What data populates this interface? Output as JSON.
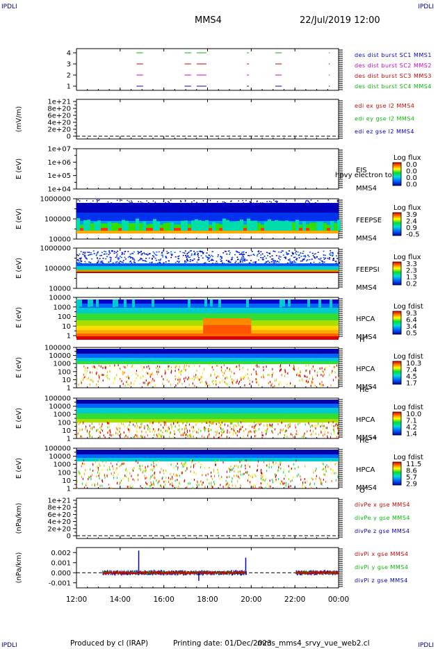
{
  "corners": {
    "tl": "IPDLI",
    "tr": "IPDLI",
    "bl": "IPDLI",
    "br": "IPDLI"
  },
  "header": {
    "spacecraft": "MMS4",
    "date": "22/Jul/2019 12:00"
  },
  "footer": {
    "producer": "Produced by cl (IRAP)",
    "printing": "Printing date: 01/Dec/2023",
    "file": "mms_mms4_srvy_vue_web2.cl"
  },
  "colors": {
    "red": "#cc0000",
    "green": "#00bb00",
    "blue": "#0000cc",
    "magenta": "#cc00cc"
  },
  "time_axis": {
    "ticks": [
      "12:00",
      "14:00",
      "16:00",
      "18:00",
      "20:00",
      "22:00",
      "00:00"
    ],
    "start_hour": 12,
    "end_hour": 24
  },
  "chart_data": [
    {
      "id": "burst",
      "type": "line",
      "yticks": [
        "1",
        "2",
        "3",
        "4"
      ],
      "ylabel": "",
      "legend": [
        {
          "text": "des dist burst SC1 MMS1",
          "color": "#0000cc"
        },
        {
          "text": "des dist burst SC2 MMS2",
          "color": "#cc00cc"
        },
        {
          "text": "des dist burst SC3 MMS3",
          "color": "#cc0000"
        },
        {
          "text": "des dist burst SC4 MMS4",
          "color": "#00bb00"
        }
      ],
      "intervals_hours": [
        [
          14.75,
          15.05
        ],
        [
          16.95,
          17.25
        ],
        [
          17.5,
          17.95
        ],
        [
          19.8,
          19.9
        ],
        [
          21.1,
          21.4
        ],
        [
          23.55,
          23.6
        ]
      ]
    },
    {
      "id": "edi",
      "type": "line",
      "yticks": [
        "0",
        "2e+20",
        "4e+20",
        "6e+20",
        "8e+20",
        "1e+21"
      ],
      "ylabel": "(mV/m)",
      "legend": [
        {
          "text": "edi ex gse l2 MMS4",
          "color": "#cc0000"
        },
        {
          "text": "edi ey gse l2 MMS4",
          "color": "#00bb00"
        },
        {
          "text": "edi ez gse l2 MMS4",
          "color": "#0000cc"
        }
      ]
    },
    {
      "id": "eis",
      "type": "heatmap",
      "yticks": [
        "1e+04",
        "1e+05",
        "1e+06",
        "1e+07"
      ],
      "ylabel": "E (eV)",
      "labels": [
        "EIS",
        "MMS4"
      ],
      "overlay": "hpvy electron to",
      "colorbar": {
        "title": "Log flux",
        "ticks": [
          "0.0",
          "0.0",
          "0.0",
          "0.0"
        ]
      }
    },
    {
      "id": "feepse",
      "type": "heatmap",
      "yticks": [
        "10000",
        "100000",
        "1000000"
      ],
      "ylabel": "E (eV)",
      "labels": [
        "FEEPSE",
        "MMS4"
      ],
      "colorbar": {
        "title": "Log flux",
        "ticks": [
          "3.9",
          "2.4",
          "0.9",
          "-0.5"
        ]
      }
    },
    {
      "id": "feepsi",
      "type": "heatmap",
      "yticks": [
        "10000",
        "100000",
        "1000000"
      ],
      "ylabel": "E (eV)",
      "labels": [
        "FEEPSI",
        "MMS4"
      ],
      "colorbar": {
        "title": "Log flux",
        "ticks": [
          "3.3",
          "2.3",
          "1.3",
          "0.2"
        ]
      }
    },
    {
      "id": "hpca_h",
      "type": "heatmap",
      "yticks": [
        "1",
        "10",
        "100",
        "1000",
        "10000"
      ],
      "ylabel": "E (eV)",
      "labels": [
        "HPCA",
        "MMS4"
      ],
      "species": "H",
      "charge": "+",
      "colorbar": {
        "title": "Log fdist",
        "ticks": [
          "9.3",
          "6.4",
          "3.4",
          "0.5"
        ]
      }
    },
    {
      "id": "hpca_he",
      "type": "heatmap",
      "yticks": [
        "1",
        "10",
        "100",
        "1000",
        "10000",
        "100000"
      ],
      "ylabel": "E (eV)",
      "labels": [
        "HPCA",
        "MMS4"
      ],
      "species": "He",
      "charge": "+",
      "colorbar": {
        "title": "Log fdist",
        "ticks": [
          "10.3",
          "7.4",
          "4.5",
          "1.7"
        ]
      }
    },
    {
      "id": "hpca_hepp",
      "type": "heatmap",
      "yticks": [
        "1",
        "10",
        "100",
        "1000",
        "10000",
        "100000"
      ],
      "ylabel": "E (eV)",
      "labels": [
        "HPCA",
        "MMS4"
      ],
      "species": "He",
      "charge": "++",
      "colorbar": {
        "title": "Log fdist",
        "ticks": [
          "10.0",
          "7.1",
          "4.2",
          "1.4"
        ]
      }
    },
    {
      "id": "hpca_o",
      "type": "heatmap",
      "yticks": [
        "1",
        "10",
        "100",
        "1000",
        "10000",
        "100000"
      ],
      "ylabel": "E (eV)",
      "labels": [
        "HPCA",
        "MMS4"
      ],
      "species": "O",
      "charge": "+",
      "colorbar": {
        "title": "Log fdist",
        "ticks": [
          "11.5",
          "8.6",
          "5.7",
          "2.9"
        ]
      }
    },
    {
      "id": "divpe",
      "type": "line",
      "yticks": [
        "0",
        "2e+20",
        "4e+20",
        "6e+20",
        "8e+20",
        "1e+21"
      ],
      "ylabel": "(nPa/km)",
      "legend": [
        {
          "text": "divPe x gse MMS4",
          "color": "#cc0000"
        },
        {
          "text": "divPe y gse MMS4",
          "color": "#00bb00"
        },
        {
          "text": "divPe z gse MMS4",
          "color": "#0000cc"
        }
      ]
    },
    {
      "id": "divpi",
      "type": "line",
      "yticks": [
        "-0.001",
        "0.000",
        "0.001",
        "0.002"
      ],
      "ylabel": "(nPa/km)",
      "legend": [
        {
          "text": "divPi x gse MMS4",
          "color": "#cc0000"
        },
        {
          "text": "divPi y gse MMS4",
          "color": "#00bb00"
        },
        {
          "text": "divPi z gse MMS4",
          "color": "#0000cc"
        }
      ],
      "data_intervals_hours": [
        [
          13.2,
          19.8
        ],
        [
          22.05,
          24.0
        ]
      ],
      "spikes": [
        {
          "t": 14.85,
          "v": 0.0022
        },
        {
          "t": 17.6,
          "v": -0.0008
        },
        {
          "t": 19.75,
          "v": 0.0015
        }
      ]
    }
  ]
}
